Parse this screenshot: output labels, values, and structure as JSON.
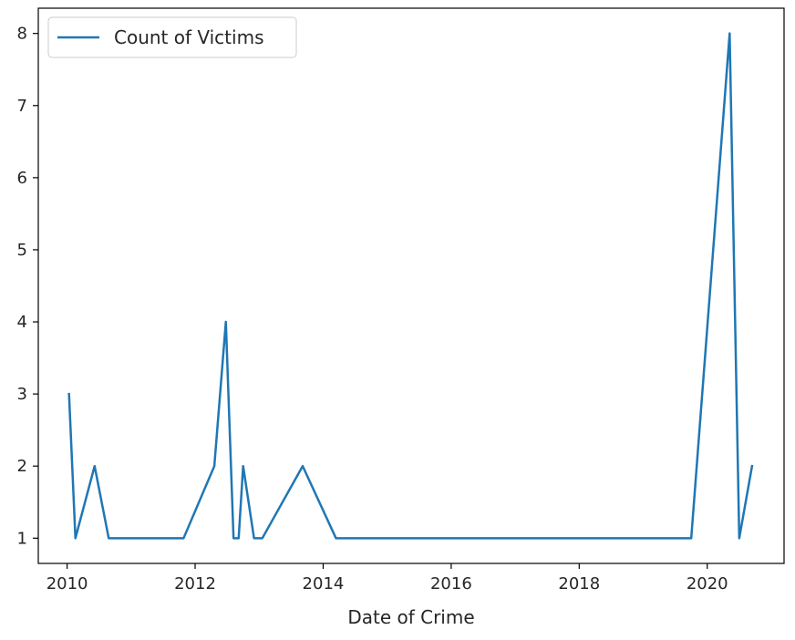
{
  "chart_data": {
    "type": "line",
    "title": "",
    "xlabel": "Date of Crime",
    "ylabel": "",
    "xlim": [
      2009.55,
      2021.2
    ],
    "ylim": [
      0.65,
      8.35
    ],
    "x_ticks": [
      2010,
      2012,
      2014,
      2016,
      2018,
      2020
    ],
    "x_tick_labels": [
      "2010",
      "2012",
      "2014",
      "2016",
      "2018",
      "2020"
    ],
    "y_ticks": [
      1,
      2,
      3,
      4,
      5,
      6,
      7,
      8
    ],
    "y_tick_labels": [
      "1",
      "2",
      "3",
      "4",
      "5",
      "6",
      "7",
      "8"
    ],
    "grid": false,
    "legend_position": "top-left",
    "series": [
      {
        "name": "Count of Victims",
        "color": "#1f77b4",
        "x": [
          2010.03,
          2010.13,
          2010.43,
          2010.65,
          2011.82,
          2012.3,
          2012.48,
          2012.6,
          2012.68,
          2012.75,
          2012.92,
          2013.05,
          2013.68,
          2014.2,
          2019.75,
          2020.35,
          2020.5,
          2020.7
        ],
        "y": [
          3,
          1,
          2,
          1,
          1,
          2,
          4,
          1,
          1,
          2,
          1,
          1,
          2,
          1,
          1,
          8,
          1,
          2
        ]
      }
    ]
  }
}
